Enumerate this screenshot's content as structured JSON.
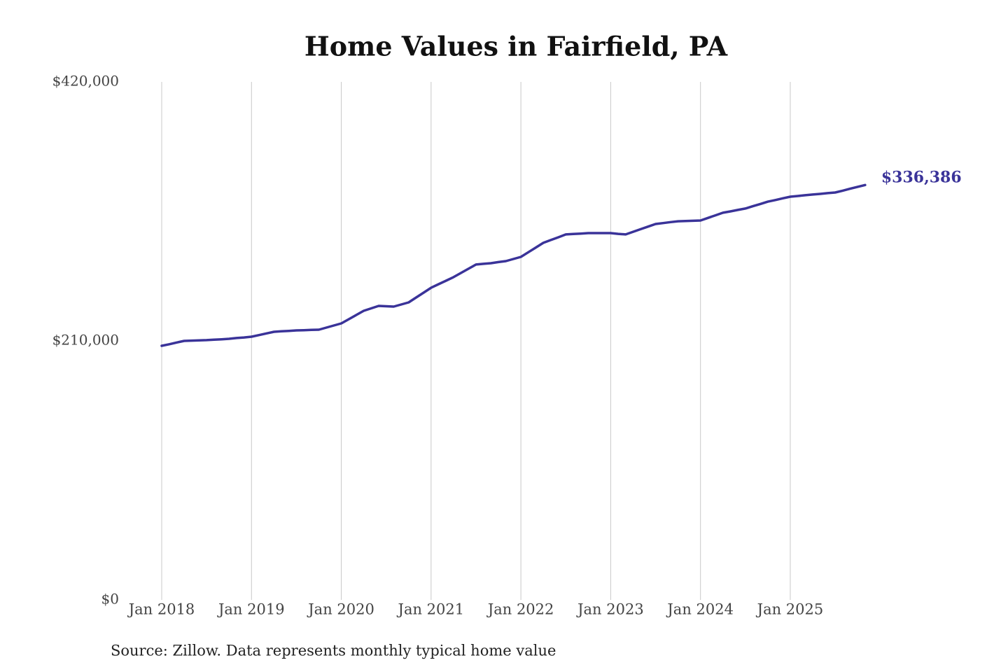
{
  "chart_data": {
    "type": "line",
    "title": "Home Values in Fairfield, PA",
    "x": [
      "2018-01",
      "2018-02",
      "2018-03",
      "2018-04",
      "2018-05",
      "2018-06",
      "2018-07",
      "2018-08",
      "2018-09",
      "2018-10",
      "2018-11",
      "2018-12",
      "2019-01",
      "2019-02",
      "2019-03",
      "2019-04",
      "2019-05",
      "2019-06",
      "2019-07",
      "2019-08",
      "2019-09",
      "2019-10",
      "2019-11",
      "2019-12",
      "2020-01",
      "2020-02",
      "2020-03",
      "2020-04",
      "2020-05",
      "2020-06",
      "2020-07",
      "2020-08",
      "2020-09",
      "2020-10",
      "2020-11",
      "2020-12",
      "2021-01",
      "2021-02",
      "2021-03",
      "2021-04",
      "2021-05",
      "2021-06",
      "2021-07",
      "2021-08",
      "2021-09",
      "2021-10",
      "2021-11",
      "2021-12",
      "2022-01",
      "2022-02",
      "2022-03",
      "2022-04",
      "2022-05",
      "2022-06",
      "2022-07",
      "2022-08",
      "2022-09",
      "2022-10",
      "2022-11",
      "2022-12",
      "2023-01",
      "2023-02",
      "2023-03",
      "2023-04",
      "2023-05",
      "2023-06",
      "2023-07",
      "2023-08",
      "2023-09",
      "2023-10",
      "2023-11",
      "2023-12",
      "2024-01",
      "2024-02",
      "2024-03",
      "2024-04",
      "2024-05",
      "2024-06",
      "2024-07",
      "2024-08",
      "2024-09",
      "2024-10",
      "2024-11",
      "2024-12",
      "2025-01",
      "2025-02",
      "2025-03",
      "2025-04",
      "2025-05",
      "2025-06",
      "2025-07",
      "2025-08",
      "2025-09",
      "2025-10",
      "2025-11"
    ],
    "values": [
      206000,
      207300,
      208700,
      210000,
      210200,
      210400,
      210600,
      211000,
      211300,
      211700,
      212300,
      212800,
      213400,
      214700,
      216100,
      217400,
      217800,
      218100,
      218500,
      218700,
      218900,
      219100,
      220800,
      222500,
      224200,
      227600,
      231000,
      234400,
      236400,
      238400,
      238100,
      237800,
      239500,
      241200,
      245200,
      249100,
      253100,
      256000,
      258800,
      261700,
      265100,
      268500,
      271900,
      272500,
      273000,
      273900,
      274700,
      276400,
      278100,
      281900,
      285700,
      289500,
      291800,
      294000,
      296300,
      296700,
      297000,
      297400,
      297400,
      297400,
      297400,
      296800,
      296300,
      298500,
      300600,
      302700,
      304800,
      305500,
      306300,
      307000,
      307200,
      307400,
      307600,
      309700,
      311800,
      313900,
      315000,
      316200,
      317300,
      319200,
      321000,
      322900,
      324200,
      325600,
      326900,
      327500,
      328100,
      328700,
      329200,
      329800,
      330300,
      331800,
      333400,
      334900,
      336386
    ],
    "end_label": "$336,386",
    "color": "#3a3399",
    "ylim": [
      0,
      420000
    ],
    "yticks": [
      {
        "value": 0,
        "label": "$0"
      },
      {
        "value": 210000,
        "label": "$210,000"
      },
      {
        "value": 420000,
        "label": "$420,000"
      }
    ],
    "xticks": [
      {
        "value": "2018-01",
        "label": "Jan 2018"
      },
      {
        "value": "2019-01",
        "label": "Jan 2019"
      },
      {
        "value": "2020-01",
        "label": "Jan 2020"
      },
      {
        "value": "2021-01",
        "label": "Jan 2021"
      },
      {
        "value": "2022-01",
        "label": "Jan 2022"
      },
      {
        "value": "2023-01",
        "label": "Jan 2023"
      },
      {
        "value": "2024-01",
        "label": "Jan 2024"
      },
      {
        "value": "2025-01",
        "label": "Jan 2025"
      }
    ],
    "grid": true,
    "source": "Source: Zillow. Data represents monthly typical home value"
  }
}
